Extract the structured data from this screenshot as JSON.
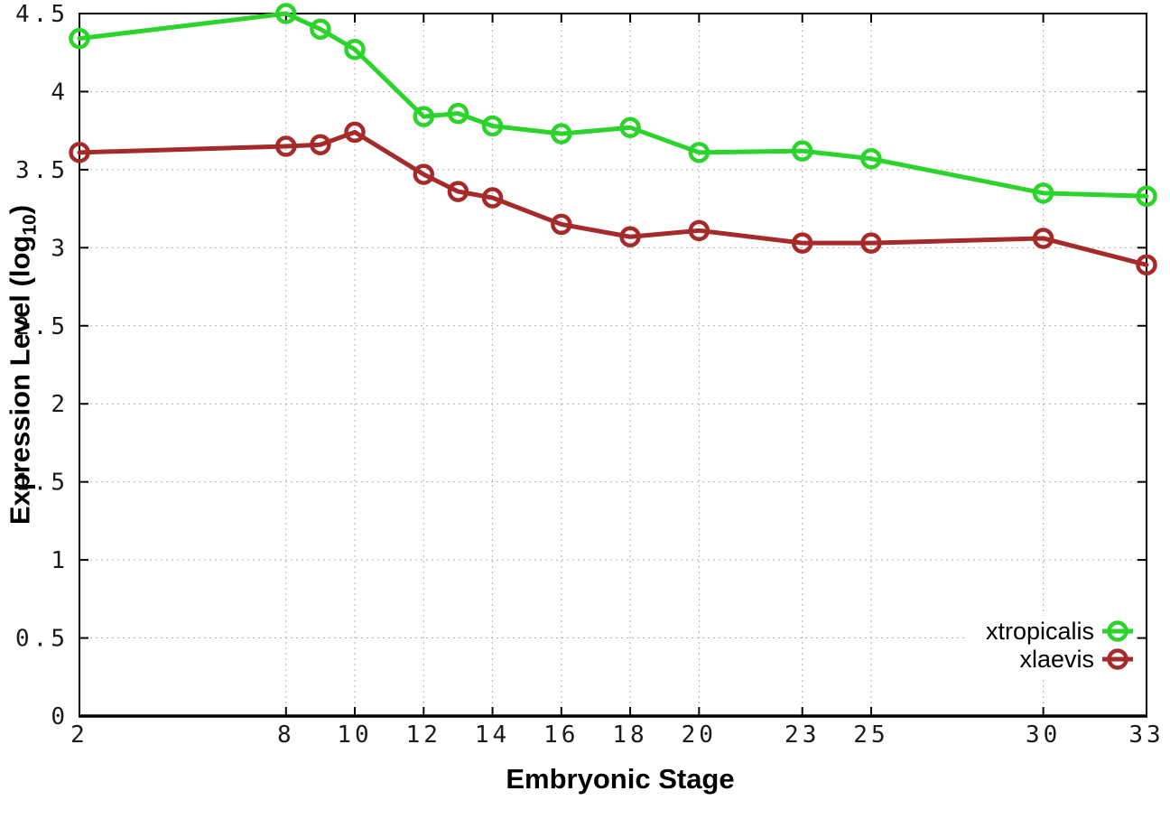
{
  "window": {
    "background": "#ffffff"
  },
  "chart_data": {
    "type": "line",
    "title": "",
    "xlabel": "Embryonic Stage",
    "ylabel": "Expression Level (log10)",
    "ylabel_parts": {
      "prefix": "Expression Level (log",
      "sub": "10",
      "suffix": ")"
    },
    "x": [
      2,
      8,
      9,
      10,
      12,
      13,
      14,
      16,
      18,
      20,
      23,
      25,
      30,
      33
    ],
    "series": [
      {
        "name": "xtropicalis",
        "color": "#2bd32b",
        "values": [
          4.34,
          4.5,
          4.4,
          4.27,
          3.84,
          3.86,
          3.78,
          3.73,
          3.77,
          3.61,
          3.62,
          3.57,
          3.35,
          3.33
        ]
      },
      {
        "name": "xlaevis",
        "color": "#a62a2a",
        "values": [
          3.61,
          3.65,
          3.66,
          3.74,
          3.47,
          3.36,
          3.32,
          3.15,
          3.07,
          3.11,
          3.03,
          3.03,
          3.06,
          2.89
        ]
      }
    ],
    "x_ticks": [
      2,
      8,
      10,
      12,
      14,
      16,
      18,
      20,
      23,
      25,
      30,
      33
    ],
    "x_tick_labels": [
      "2",
      "8",
      "10",
      "12",
      "14",
      "16",
      "18",
      "20",
      "23",
      "25",
      "30",
      "33"
    ],
    "y_ticks": [
      0,
      0.5,
      1,
      1.5,
      2,
      2.5,
      3,
      3.5,
      4,
      4.5
    ],
    "y_tick_labels": [
      "0",
      "0.5",
      "1",
      "1.5",
      "2",
      "2.5",
      "3",
      "3.5",
      "4",
      "4.5"
    ],
    "xlim": [
      2,
      33
    ],
    "ylim": [
      0,
      4.5
    ],
    "grid": true,
    "legend_position": "bottom-right",
    "colors": {
      "axis": "#000000",
      "grid": "#b0b0b0",
      "tick_label": "#1a1a1a",
      "legend_text": "#000000",
      "plot_background": "#ffffff"
    }
  }
}
